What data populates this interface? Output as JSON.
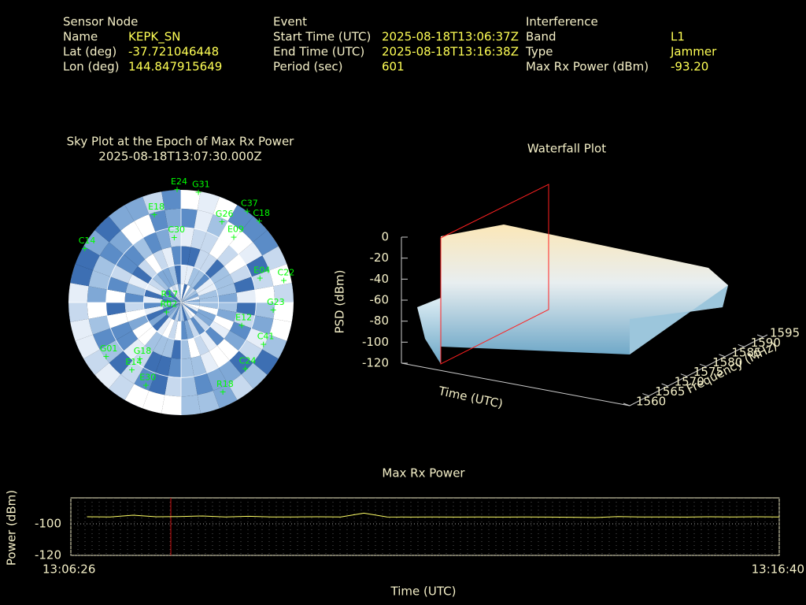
{
  "header": {
    "sensor": {
      "title": "Sensor Node",
      "rows": [
        [
          "Name",
          "KEPK_SN"
        ],
        [
          "Lat (deg)",
          "-37.721046448"
        ],
        [
          "Lon (deg)",
          "144.847915649"
        ]
      ]
    },
    "event": {
      "title": "Event",
      "rows": [
        [
          "Start Time (UTC)",
          "2025-08-18T13:06:37Z"
        ],
        [
          "End Time (UTC)",
          "2025-08-18T13:16:38Z"
        ],
        [
          "Period (sec)",
          "601"
        ]
      ]
    },
    "interference": {
      "title": "Interference",
      "rows": [
        [
          "Band",
          "L1"
        ],
        [
          "Type",
          "Jammer"
        ],
        [
          "Max Rx Power (dBm)",
          "-93.20"
        ]
      ]
    }
  },
  "chart_data": [
    {
      "type": "polar",
      "title": "Sky Plot at the Epoch of Max Rx Power",
      "subtitle": "2025-08-18T13:07:30.000Z",
      "rlim": [
        90,
        0
      ],
      "rticks": [
        0,
        30,
        60
      ],
      "color": "#00ff00",
      "satellites": [
        {
          "label": "E24",
          "az": 358,
          "el": 0
        },
        {
          "label": "G31",
          "az": 9,
          "el": 1
        },
        {
          "label": "C37",
          "az": 36,
          "el": 0
        },
        {
          "label": "C18",
          "az": 44,
          "el": 0
        },
        {
          "label": "G26",
          "az": 27,
          "el": 18
        },
        {
          "label": "E09",
          "az": 39,
          "el": 23
        },
        {
          "label": "C14",
          "az": 299,
          "el": 2
        },
        {
          "label": "E04",
          "az": 73,
          "el": 24
        },
        {
          "label": "C22",
          "az": 78,
          "el": 6
        },
        {
          "label": "G23",
          "az": 95,
          "el": 16
        },
        {
          "label": "E12",
          "az": 111,
          "el": 38
        },
        {
          "label": "C41",
          "az": 117,
          "el": 16
        },
        {
          "label": "G01",
          "az": 234,
          "el": 16
        },
        {
          "label": "E14",
          "az": 216,
          "el": 23
        },
        {
          "label": "E30",
          "az": 203,
          "el": 18
        },
        {
          "label": "G18",
          "az": 216,
          "el": 34
        },
        {
          "label": "R17",
          "az": 270,
          "el": 79
        },
        {
          "label": "R02",
          "az": 236,
          "el": 76
        },
        {
          "label": "R18",
          "az": 155,
          "el": 11
        },
        {
          "label": "C24",
          "az": 136,
          "el": 16
        },
        {
          "label": "E18",
          "az": 343,
          "el": 17
        },
        {
          "label": "C30",
          "az": 354,
          "el": 38
        }
      ]
    },
    {
      "type": "surface",
      "title": "Waterfall Plot",
      "zlabel": "PSD (dBm)",
      "ylabel": "Frequency (MHz)",
      "xlabel": "Time (UTC)",
      "zlim": [
        -120,
        0
      ],
      "zticks": [
        0,
        -20,
        -40,
        -60,
        -80,
        -100,
        -120
      ],
      "ylim": [
        1560,
        1595
      ],
      "yticks": [
        1560,
        1565,
        1570,
        1575,
        1580,
        1585,
        1590,
        1595
      ]
    },
    {
      "type": "line",
      "title": "Max Rx Power",
      "xlabel": "Time (UTC)",
      "ylabel": "Power (dBm)",
      "xlim": [
        "13:06:26",
        "13:16:40"
      ],
      "xticks": [
        "13:06:26",
        "13:16:40"
      ],
      "ylim": [
        -120,
        -83.5
      ],
      "yticks": [
        -100,
        -120
      ],
      "grid": true,
      "series": [
        {
          "name": "Max Rx Power",
          "color": "#ffff66",
          "x": [
            "13:06:40",
            "13:07:00",
            "13:07:20",
            "13:07:40",
            "13:08:00",
            "13:08:20",
            "13:08:40",
            "13:09:00",
            "13:09:20",
            "13:09:40",
            "13:10:00",
            "13:10:20",
            "13:10:40",
            "13:11:00",
            "13:11:20",
            "13:11:40",
            "13:12:00",
            "13:12:20",
            "13:12:40",
            "13:13:00",
            "13:13:20",
            "13:13:40",
            "13:14:00",
            "13:14:20",
            "13:14:40",
            "13:15:00",
            "13:15:20",
            "13:15:40",
            "13:16:00",
            "13:16:20",
            "13:16:40"
          ],
          "values": [
            -95.5,
            -95.6,
            -94.5,
            -95.5,
            -95.4,
            -95.0,
            -95.6,
            -95.2,
            -95.6,
            -95.6,
            -95.5,
            -95.6,
            -93.2,
            -95.6,
            -95.7,
            -95.6,
            -95.7,
            -95.6,
            -95.7,
            -95.6,
            -95.7,
            -95.8,
            -96.0,
            -95.4,
            -95.6,
            -95.6,
            -95.7,
            -95.5,
            -95.6,
            -95.5,
            -95.6
          ]
        }
      ]
    }
  ]
}
